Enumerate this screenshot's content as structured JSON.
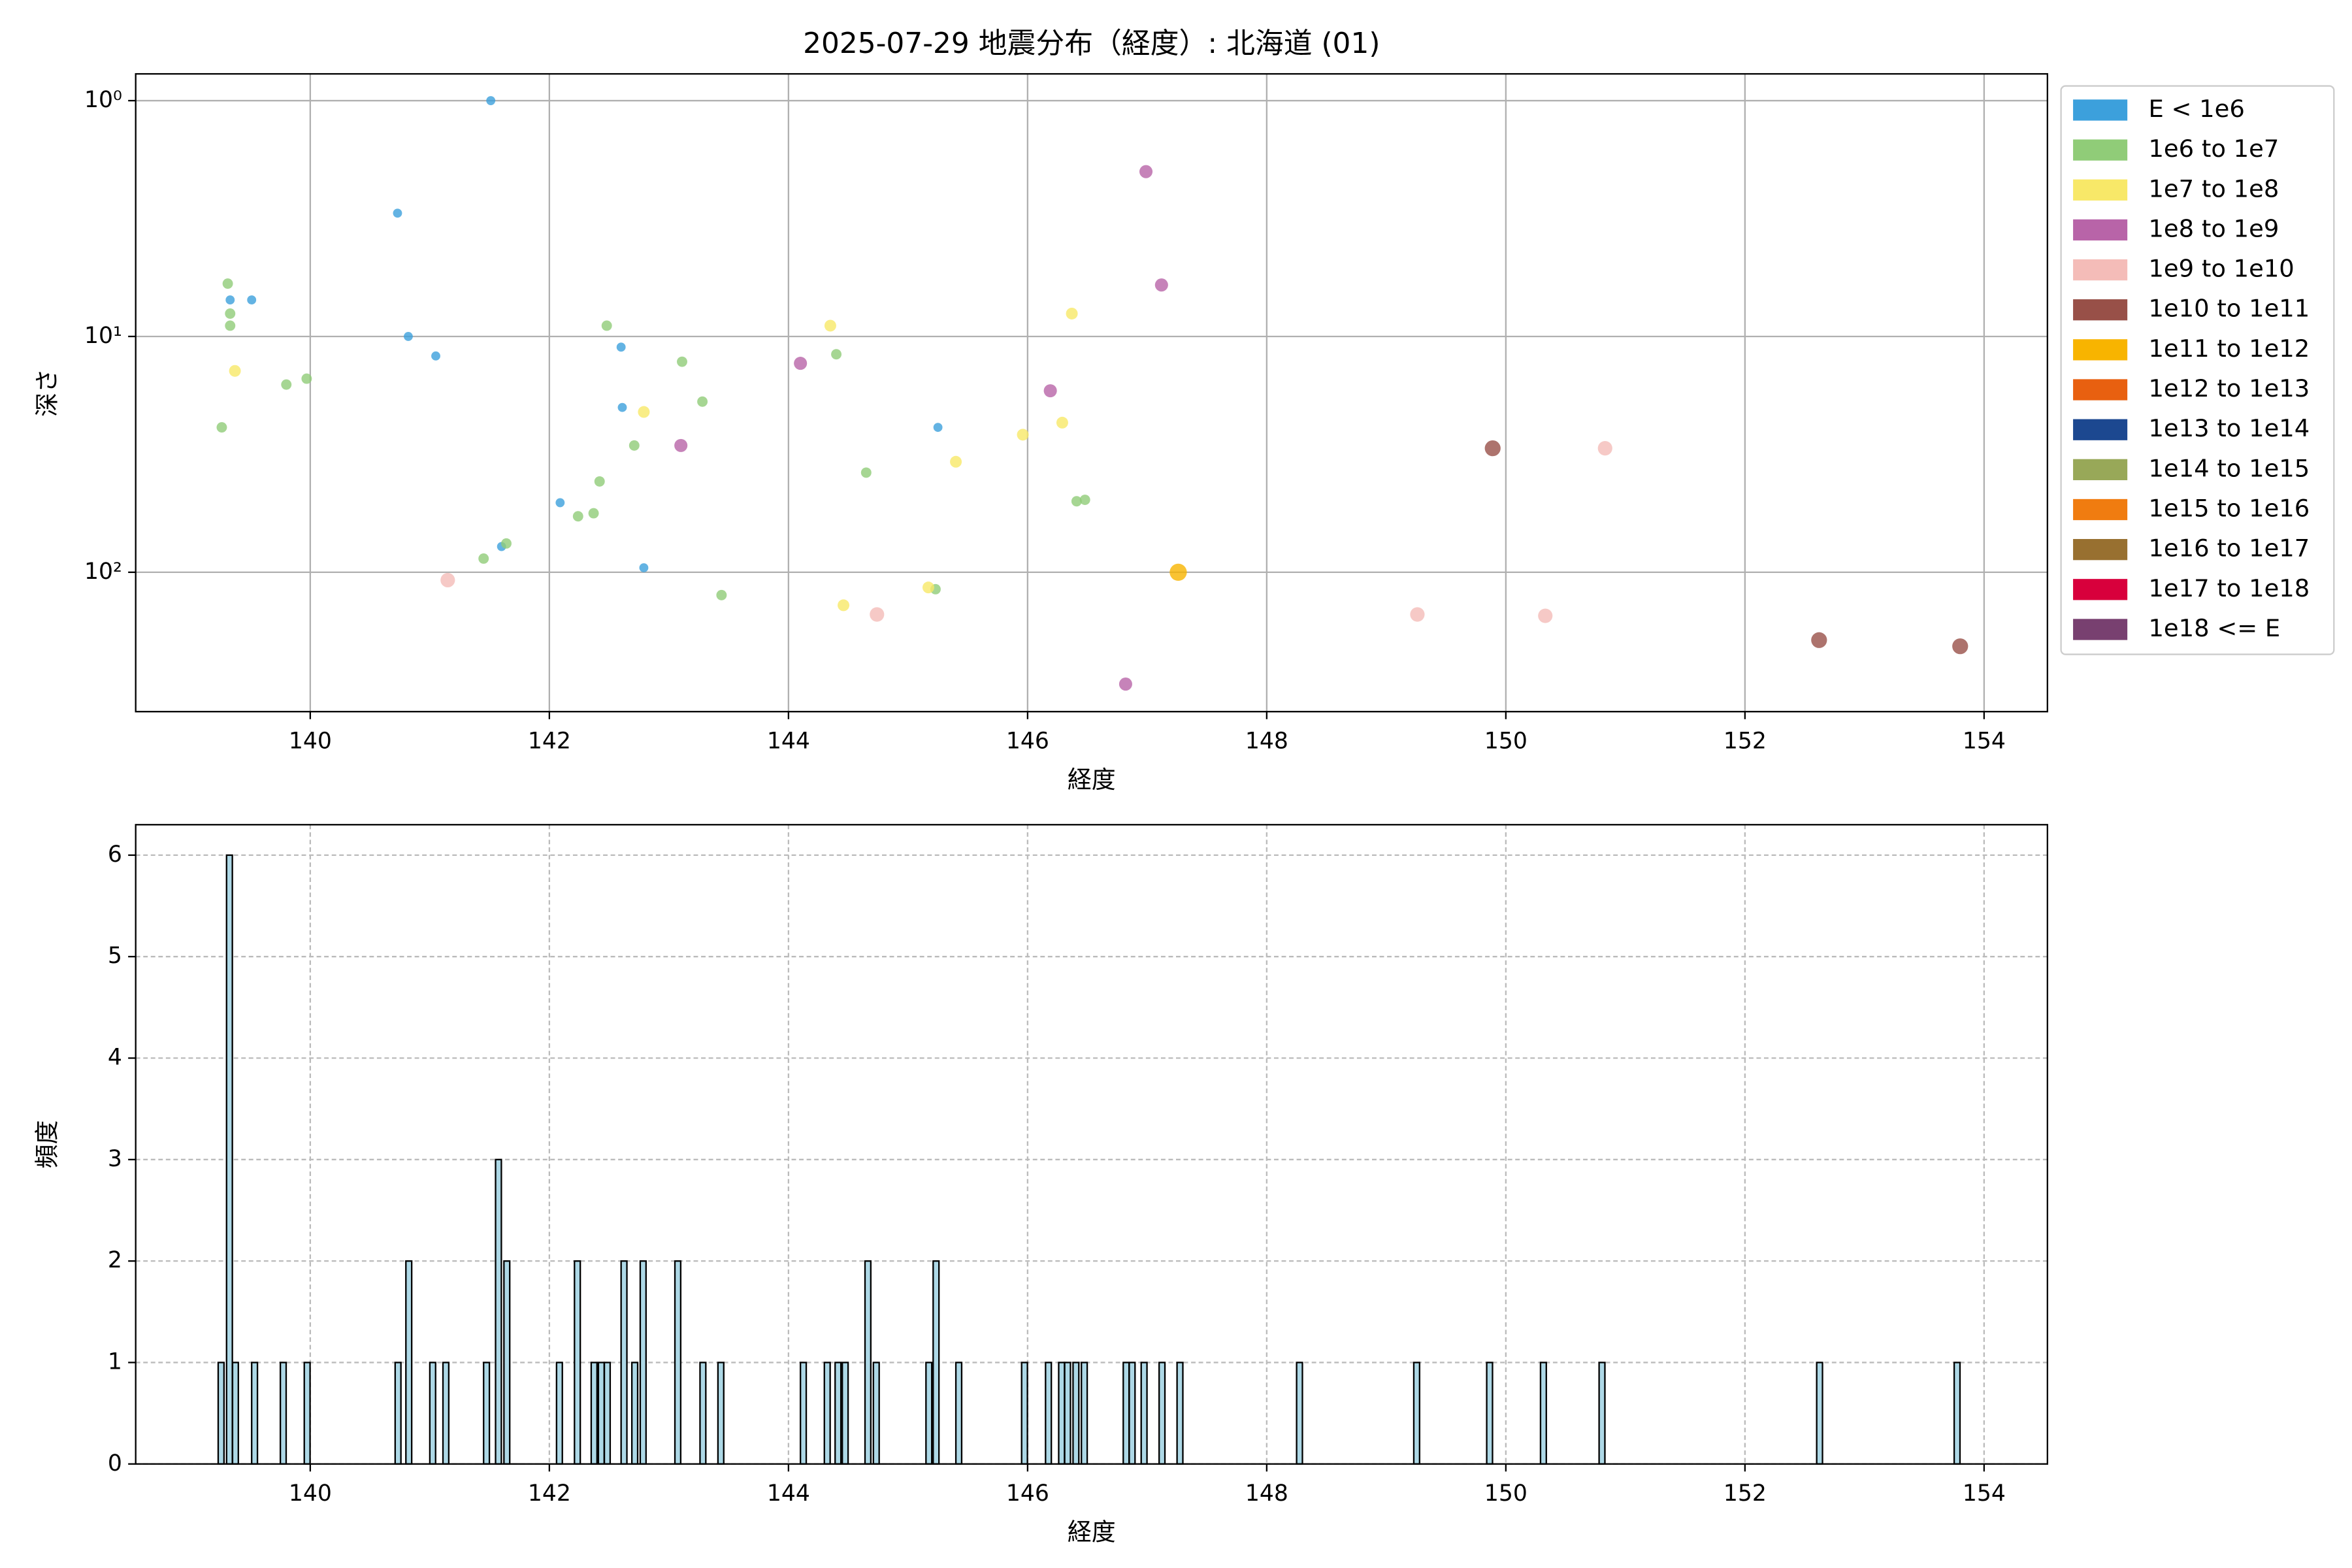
{
  "chart_data": [
    {
      "type": "scatter",
      "title": "2025-07-29 地震分布（経度）: 北海道 (01)",
      "x_label": "経度",
      "y_label": "深さ",
      "xlim": [
        138.54,
        154.53
      ],
      "xticks": [
        140,
        142,
        144,
        146,
        148,
        150,
        152,
        154
      ],
      "ylim": [
        0.77,
        390
      ],
      "y_inverted": true,
      "log_y": true,
      "yticks": [
        {
          "value": 1,
          "label": "10⁰"
        },
        {
          "value": 10,
          "label": "10¹"
        },
        {
          "value": 100,
          "label": "10²"
        }
      ],
      "grid": true,
      "grid_style": "solid",
      "legend": "outside-right",
      "series": [
        {
          "name": "E < 1e6",
          "color": "#3ca0dc",
          "x": [
            141.51,
            140.73,
            139.33,
            139.51,
            140.82,
            141.05,
            142.6,
            142.61,
            145.25,
            142.09,
            141.6,
            142.79
          ],
          "values": [
            1.0,
            3.0,
            7.0,
            7.0,
            10.0,
            12.1,
            11.1,
            20,
            24.3,
            50.7,
            77.8,
            95.7
          ]
        },
        {
          "name": "1e6 to 1e7",
          "color": "#90cc78",
          "x": [
            139.26,
            139.31,
            139.33,
            139.33,
            139.8,
            139.97,
            142.48,
            143.11,
            143.28,
            144.4,
            142.71,
            142.42,
            142.37,
            142.24,
            144.65,
            146.41,
            146.48,
            141.64,
            141.45,
            143.44,
            145.23
          ],
          "values": [
            24.3,
            5.97,
            8.0,
            9.0,
            16.0,
            15.1,
            9.0,
            12.8,
            18.9,
            11.9,
            29.0,
            41.2,
            56.2,
            57.9,
            37.8,
            50.0,
            49.3,
            75.5,
            87.5,
            125,
            118
          ]
        },
        {
          "name": "1e7 to 1e8",
          "color": "#f8e868",
          "x": [
            139.37,
            144.35,
            146.37,
            142.79,
            145.4,
            145.96,
            146.29,
            145.17,
            144.46
          ],
          "values": [
            14.0,
            9.0,
            8.0,
            20.9,
            34.0,
            26.1,
            23.2,
            116,
            138
          ]
        },
        {
          "name": "1e8 to 1e9",
          "color": "#b864a8",
          "x": [
            146.99,
            147.12,
            144.1,
            146.19,
            143.1,
            146.82
          ],
          "values": [
            2.0,
            6.05,
            13.0,
            17.0,
            29.0,
            298
          ]
        },
        {
          "name": "1e9 to 1e10",
          "color": "#f4bcb8",
          "x": [
            141.15,
            144.74,
            149.26,
            150.33,
            150.83
          ],
          "values": [
            108,
            151,
            151,
            153,
            29.8
          ]
        },
        {
          "name": "1e10 to 1e11",
          "color": "#985048",
          "x": [
            149.89,
            152.62,
            153.8
          ],
          "values": [
            29.8,
            194,
            206
          ]
        },
        {
          "name": "1e11 to 1e12",
          "color": "#f8b400",
          "x": [
            147.26
          ],
          "values": [
            100
          ]
        },
        {
          "name": "1e12 to 1e13",
          "color": "#e86010",
          "x": [],
          "values": []
        },
        {
          "name": "1e13 to 1e14",
          "color": "#1c4890",
          "x": [],
          "values": []
        },
        {
          "name": "1e14 to 1e15",
          "color": "#98a858",
          "x": [],
          "values": []
        },
        {
          "name": "1e15 to 1e16",
          "color": "#f07c10",
          "x": [],
          "values": []
        },
        {
          "name": "1e16 to 1e17",
          "color": "#987030",
          "x": [],
          "values": []
        },
        {
          "name": "1e17 to 1e18",
          "color": "#d8003c",
          "x": [],
          "values": []
        },
        {
          "name": "1e18 <= E",
          "color": "#784070",
          "x": [],
          "values": []
        }
      ]
    },
    {
      "type": "histogram",
      "x_label": "経度",
      "y_label": "頻度",
      "xlim": [
        138.54,
        154.53
      ],
      "xticks": [
        140,
        142,
        144,
        146,
        148,
        150,
        152,
        154
      ],
      "ylim": [
        0,
        6.3
      ],
      "yticks": [
        0,
        1,
        2,
        3,
        4,
        5,
        6
      ],
      "grid": true,
      "grid_style": "dashed",
      "color": "#add8e6",
      "edgecolor": "#000000",
      "bin_width": 0.0485,
      "x": [
        139.23,
        139.3,
        139.35,
        139.51,
        139.75,
        139.95,
        140.71,
        140.8,
        141.0,
        141.11,
        141.45,
        141.55,
        141.62,
        142.06,
        142.21,
        142.35,
        142.41,
        142.46,
        142.6,
        142.69,
        142.76,
        143.05,
        143.26,
        143.41,
        144.1,
        144.3,
        144.39,
        144.45,
        144.64,
        144.71,
        145.15,
        145.21,
        145.4,
        145.95,
        146.15,
        146.26,
        146.31,
        146.38,
        146.45,
        146.8,
        146.85,
        146.95,
        147.1,
        147.25,
        148.25,
        149.23,
        149.84,
        150.29,
        150.78,
        152.6,
        153.75
      ],
      "values": [
        1,
        6,
        1,
        1,
        1,
        1,
        1,
        2,
        1,
        1,
        1,
        3,
        2,
        1,
        2,
        1,
        1,
        1,
        2,
        1,
        2,
        2,
        1,
        1,
        1,
        1,
        1,
        1,
        2,
        1,
        1,
        2,
        1,
        1,
        1,
        1,
        1,
        1,
        1,
        1,
        1,
        1,
        1,
        1,
        1,
        1,
        1,
        1,
        1,
        1,
        1
      ]
    }
  ]
}
